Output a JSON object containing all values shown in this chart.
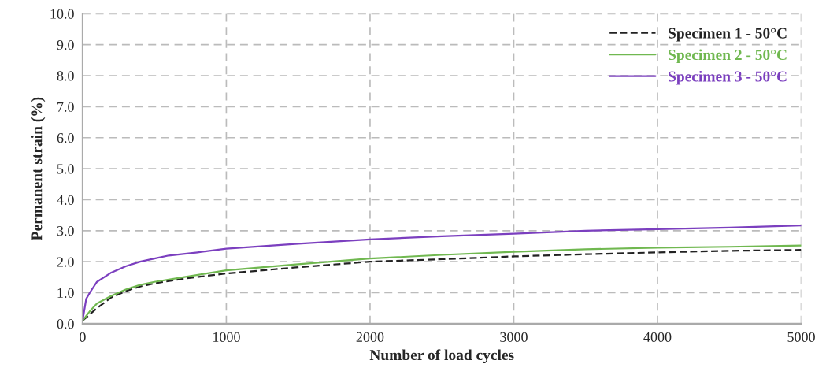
{
  "chart_data": {
    "type": "line",
    "xlabel": "Number of load cycles",
    "ylabel": "Permanent strain (%)",
    "xlim": [
      0,
      5000
    ],
    "xticks": [
      0,
      1000,
      2000,
      3000,
      4000,
      5000
    ],
    "ylim": [
      0,
      10
    ],
    "yticks": [
      {
        "value": 0,
        "label": "0.0"
      },
      {
        "value": 1,
        "label": "1.0"
      },
      {
        "value": 2,
        "label": "2.0"
      },
      {
        "value": 3,
        "label": "3.0"
      },
      {
        "value": 4,
        "label": "4.0"
      },
      {
        "value": 5,
        "label": "5.0"
      },
      {
        "value": 6,
        "label": "6.0"
      },
      {
        "value": 7,
        "label": "7.0"
      },
      {
        "value": 8,
        "label": "8.0"
      },
      {
        "value": 9,
        "label": "9.0"
      },
      {
        "value": 10,
        "label": "10.0"
      }
    ],
    "grid": true,
    "legend": "top right",
    "marker": "none",
    "series": [
      {
        "name": "Specimen 1 - 50°C",
        "color": "#222222",
        "line_style": "dashed",
        "x": [
          0,
          50,
          100,
          200,
          300,
          400,
          500,
          700,
          1000,
          1500,
          2000,
          2500,
          3000,
          3500,
          4000,
          4500,
          5000
        ],
        "values": [
          0.1,
          0.3,
          0.5,
          0.85,
          1.05,
          1.2,
          1.3,
          1.45,
          1.62,
          1.82,
          2.0,
          2.08,
          2.17,
          2.24,
          2.3,
          2.35,
          2.38
        ]
      },
      {
        "name": "Specimen 2 - 50°C",
        "color": "#70b850",
        "line_style": "solid",
        "x": [
          0,
          50,
          100,
          200,
          300,
          400,
          500,
          700,
          1000,
          1500,
          2000,
          2500,
          3000,
          3500,
          4000,
          4500,
          5000
        ],
        "values": [
          0.1,
          0.4,
          0.65,
          0.9,
          1.1,
          1.25,
          1.35,
          1.5,
          1.72,
          1.92,
          2.1,
          2.22,
          2.32,
          2.4,
          2.45,
          2.48,
          2.52
        ]
      },
      {
        "name": "Specimen 3 - 50°C",
        "color": "#7b3fbf",
        "line_style": "solid",
        "x": [
          0,
          25,
          50,
          100,
          200,
          300,
          400,
          500,
          600,
          800,
          1000,
          1500,
          2000,
          2500,
          3000,
          3500,
          4000,
          4500,
          5000
        ],
        "values": [
          0.1,
          0.8,
          1.0,
          1.35,
          1.65,
          1.85,
          2.0,
          2.1,
          2.2,
          2.3,
          2.42,
          2.58,
          2.72,
          2.82,
          2.9,
          3.0,
          3.05,
          3.1,
          3.17
        ]
      }
    ]
  }
}
